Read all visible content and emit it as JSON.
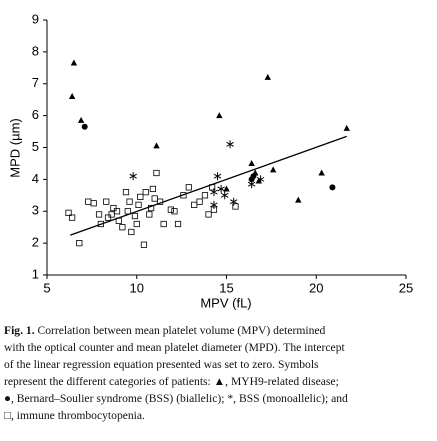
{
  "chart_data": {
    "type": "scatter",
    "x_label": "MPV (fL)",
    "y_label": "MPD (µm)",
    "xlim": [
      5,
      25
    ],
    "xticks": [
      5,
      10,
      15,
      20,
      25
    ],
    "ylim": [
      1,
      9
    ],
    "yticks": [
      1,
      2,
      3,
      4,
      5,
      6,
      7,
      8,
      9
    ],
    "color": "#000000",
    "series": [
      {
        "marker": "triangle",
        "x": [
          6.5,
          6.4,
          6.9,
          11.1,
          14.6,
          17.3,
          21.7,
          17.6,
          16.4,
          16.8,
          16.6,
          20.3,
          19.0,
          15.0
        ],
        "y": [
          7.65,
          6.6,
          5.85,
          5.05,
          6.0,
          7.2,
          5.6,
          4.3,
          4.5,
          3.95,
          4.2,
          4.2,
          3.35,
          3.7
        ]
      },
      {
        "marker": "circle",
        "x": [
          7.1,
          16.5,
          16.4,
          20.9
        ],
        "y": [
          5.65,
          4.1,
          4.0,
          3.75
        ]
      },
      {
        "marker": "asterisk",
        "x": [
          9.8,
          14.5,
          15.2,
          14.7,
          14.9,
          14.3,
          16.4,
          16.9,
          15.4,
          14.3
        ],
        "y": [
          4.1,
          4.1,
          5.1,
          3.7,
          3.5,
          3.2,
          3.85,
          4.0,
          3.3,
          3.6
        ]
      },
      {
        "marker": "square",
        "x": [
          6.2,
          6.4,
          6.8,
          7.3,
          7.6,
          7.9,
          8.0,
          8.3,
          8.6,
          8.7,
          9.0,
          9.2,
          9.4,
          9.5,
          9.7,
          9.9,
          10.1,
          10.2,
          10.4,
          10.5,
          10.7,
          10.9,
          11.0,
          11.1,
          11.3,
          11.5,
          11.9,
          12.3,
          12.6,
          12.9,
          13.2,
          13.5,
          14.0,
          14.3,
          13.8,
          8.4,
          8.9,
          9.6,
          10.0,
          10.8,
          12.1,
          14.2,
          15.5
        ],
        "y": [
          2.95,
          2.8,
          2.0,
          3.3,
          3.25,
          2.9,
          2.6,
          3.3,
          2.9,
          3.1,
          2.7,
          2.5,
          3.6,
          3.0,
          2.35,
          2.85,
          3.2,
          3.45,
          1.95,
          3.6,
          2.9,
          3.7,
          3.4,
          4.2,
          3.3,
          2.6,
          3.05,
          2.6,
          3.5,
          3.75,
          3.2,
          3.3,
          2.9,
          3.05,
          3.5,
          2.8,
          3.0,
          3.3,
          2.6,
          3.1,
          3.0,
          3.75,
          3.15
        ]
      }
    ],
    "fit": {
      "x": [
        6.3,
        21.7
      ],
      "y": [
        2.25,
        5.35
      ]
    }
  },
  "caption": {
    "label": "Fig. 1.",
    "lines": [
      " Correlation between mean platelet volume (MPV) determined",
      "with the optical counter and mean platelet diameter (MPD). The intercept",
      "of the linear regression equation presented was set to zero. Symbols",
      "represent the different categories of patients: ▲, MYH9-related disease;",
      "●, Bernard–Soulier syndrome (BSS) (biallelic); *, BSS (monoallelic); and",
      "□, immune thrombocytopenia."
    ]
  }
}
